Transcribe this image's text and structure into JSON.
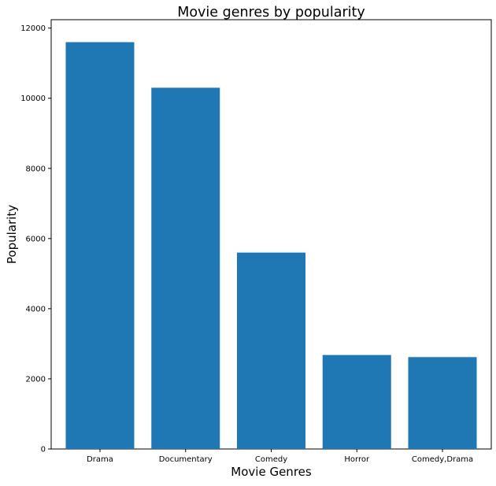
{
  "chart_data": {
    "type": "bar",
    "title": "Movie genres by popularity",
    "xlabel": "Movie Genres",
    "ylabel": "Popularity",
    "categories": [
      "Drama",
      "Documentary",
      "Comedy",
      "Horror",
      "Comedy,Drama"
    ],
    "values": [
      11600,
      10300,
      5600,
      2680,
      2620
    ],
    "ylim": [
      0,
      12000
    ],
    "yticks": [
      0,
      2000,
      4000,
      6000,
      8000,
      10000,
      12000
    ],
    "bar_color": "#1f77b4",
    "grid": false,
    "legend": "none"
  }
}
